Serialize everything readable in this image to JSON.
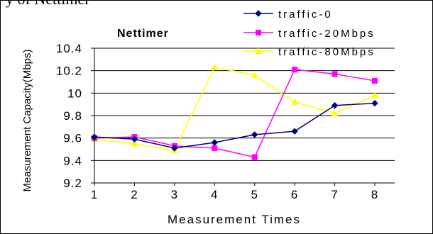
{
  "cropped_caption": "y of Nettimer",
  "chart_data": {
    "type": "line",
    "title": "Nettimer",
    "xlabel": "Measurement Times",
    "ylabel": "Measurement Capacity(Mbps)",
    "x": [
      1,
      2,
      3,
      4,
      5,
      6,
      7,
      8
    ],
    "ylim": [
      9.2,
      10.4
    ],
    "yticks": [
      "9.2",
      "9.4",
      "9.6",
      "9.8",
      "10",
      "10.2",
      "10.4"
    ],
    "ytick_values": [
      9.2,
      9.4,
      9.6,
      9.8,
      10.0,
      10.2,
      10.4
    ],
    "grid": "horizontal",
    "legend_position": "top-right",
    "series": [
      {
        "name": "traffic-0",
        "color": "#000080",
        "marker": "diamond",
        "values": [
          9.61,
          9.59,
          9.51,
          9.56,
          9.63,
          9.66,
          9.89,
          9.91
        ]
      },
      {
        "name": "traffic-20Mbps",
        "color": "#ff00ff",
        "marker": "square",
        "values": [
          9.6,
          9.61,
          9.53,
          9.51,
          9.43,
          10.21,
          10.17,
          10.11
        ]
      },
      {
        "name": "traffic-80Mbps",
        "color": "#ffff00",
        "marker": "triangle",
        "values": [
          9.59,
          9.55,
          9.49,
          10.23,
          10.16,
          9.92,
          9.82,
          9.98
        ]
      }
    ]
  }
}
